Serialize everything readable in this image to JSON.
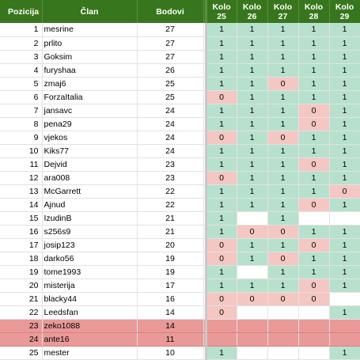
{
  "headers": {
    "pozicija": "Pozicija",
    "clan": "Član",
    "bodovi": "Bodovi",
    "rounds": [
      {
        "top": "Kolo",
        "num": "25"
      },
      {
        "top": "Kolo",
        "num": "26"
      },
      {
        "top": "Kolo",
        "num": "27"
      },
      {
        "top": "Kolo",
        "num": "28"
      },
      {
        "top": "Kolo",
        "num": "29"
      }
    ]
  },
  "colors": {
    "header_bg": "#38761d",
    "header_text": "#ffffff",
    "win": "#b7e1cd",
    "loss": "#f4c7c3",
    "relegated": "#ea9999"
  },
  "rows": [
    {
      "pos": "1",
      "name": "mesrine",
      "pts": "27",
      "r": [
        "1",
        "1",
        "1",
        "1",
        "1"
      ],
      "relegated": false
    },
    {
      "pos": "2",
      "name": "prlito",
      "pts": "27",
      "r": [
        "1",
        "1",
        "1",
        "1",
        "1"
      ],
      "relegated": false
    },
    {
      "pos": "3",
      "name": "Goksim",
      "pts": "27",
      "r": [
        "1",
        "1",
        "1",
        "1",
        "1"
      ],
      "relegated": false
    },
    {
      "pos": "4",
      "name": "furyshaa",
      "pts": "26",
      "r": [
        "1",
        "1",
        "1",
        "1",
        "1"
      ],
      "relegated": false
    },
    {
      "pos": "5",
      "name": "zmaj6",
      "pts": "25",
      "r": [
        "1",
        "1",
        "0",
        "1",
        "1"
      ],
      "relegated": false
    },
    {
      "pos": "6",
      "name": "ForzaItalia",
      "pts": "25",
      "r": [
        "0",
        "1",
        "1",
        "1",
        "1"
      ],
      "relegated": false
    },
    {
      "pos": "7",
      "name": "jansavc",
      "pts": "24",
      "r": [
        "1",
        "1",
        "1",
        "0",
        "1"
      ],
      "relegated": false
    },
    {
      "pos": "8",
      "name": "pena29",
      "pts": "24",
      "r": [
        "1",
        "1",
        "1",
        "0",
        "1"
      ],
      "relegated": false
    },
    {
      "pos": "9",
      "name": "vjekos",
      "pts": "24",
      "r": [
        "0",
        "1",
        "0",
        "1",
        "1"
      ],
      "relegated": false
    },
    {
      "pos": "10",
      "name": "Kiks77",
      "pts": "24",
      "r": [
        "1",
        "1",
        "1",
        "1",
        "1"
      ],
      "relegated": false
    },
    {
      "pos": "11",
      "name": "Dejvid",
      "pts": "23",
      "r": [
        "1",
        "1",
        "1",
        "0",
        "1"
      ],
      "relegated": false
    },
    {
      "pos": "12",
      "name": "ara008",
      "pts": "23",
      "r": [
        "0",
        "1",
        "1",
        "1",
        "1"
      ],
      "relegated": false
    },
    {
      "pos": "13",
      "name": "McGarrett",
      "pts": "22",
      "r": [
        "1",
        "1",
        "1",
        "1",
        "0"
      ],
      "relegated": false
    },
    {
      "pos": "14",
      "name": "Ajnud",
      "pts": "22",
      "r": [
        "1",
        "1",
        "1",
        "0",
        "1"
      ],
      "relegated": false
    },
    {
      "pos": "15",
      "name": "IzudinB",
      "pts": "21",
      "r": [
        "1",
        "",
        "1",
        "",
        ""
      ],
      "relegated": false
    },
    {
      "pos": "16",
      "name": "s256s9",
      "pts": "21",
      "r": [
        "1",
        "0",
        "0",
        "1",
        "1"
      ],
      "relegated": false
    },
    {
      "pos": "17",
      "name": "josip123",
      "pts": "20",
      "r": [
        "0",
        "1",
        "1",
        "0",
        "1"
      ],
      "relegated": false
    },
    {
      "pos": "18",
      "name": "darko56",
      "pts": "19",
      "r": [
        "0",
        "1",
        "0",
        "1",
        "1"
      ],
      "relegated": false
    },
    {
      "pos": "19",
      "name": "tome1993",
      "pts": "19",
      "r": [
        "1",
        "",
        "1",
        "1",
        "1"
      ],
      "relegated": false
    },
    {
      "pos": "20",
      "name": "misterija",
      "pts": "17",
      "r": [
        "1",
        "1",
        "1",
        "0",
        "1"
      ],
      "relegated": false
    },
    {
      "pos": "21",
      "name": "blacky44",
      "pts": "16",
      "r": [
        "0",
        "0",
        "0",
        "0",
        ""
      ],
      "relegated": false
    },
    {
      "pos": "22",
      "name": "Leedsfan",
      "pts": "14",
      "r": [
        "0",
        "",
        "",
        "",
        "1"
      ],
      "relegated": false
    },
    {
      "pos": "23",
      "name": "zeko1088",
      "pts": "14",
      "r": [
        "",
        "",
        "",
        "",
        ""
      ],
      "relegated": true
    },
    {
      "pos": "24",
      "name": "ante16",
      "pts": "11",
      "r": [
        "",
        "",
        "",
        "",
        ""
      ],
      "relegated": true
    },
    {
      "pos": "25",
      "name": "mester",
      "pts": "10",
      "r": [
        "1",
        "",
        "",
        "",
        "1"
      ],
      "relegated": false
    }
  ]
}
